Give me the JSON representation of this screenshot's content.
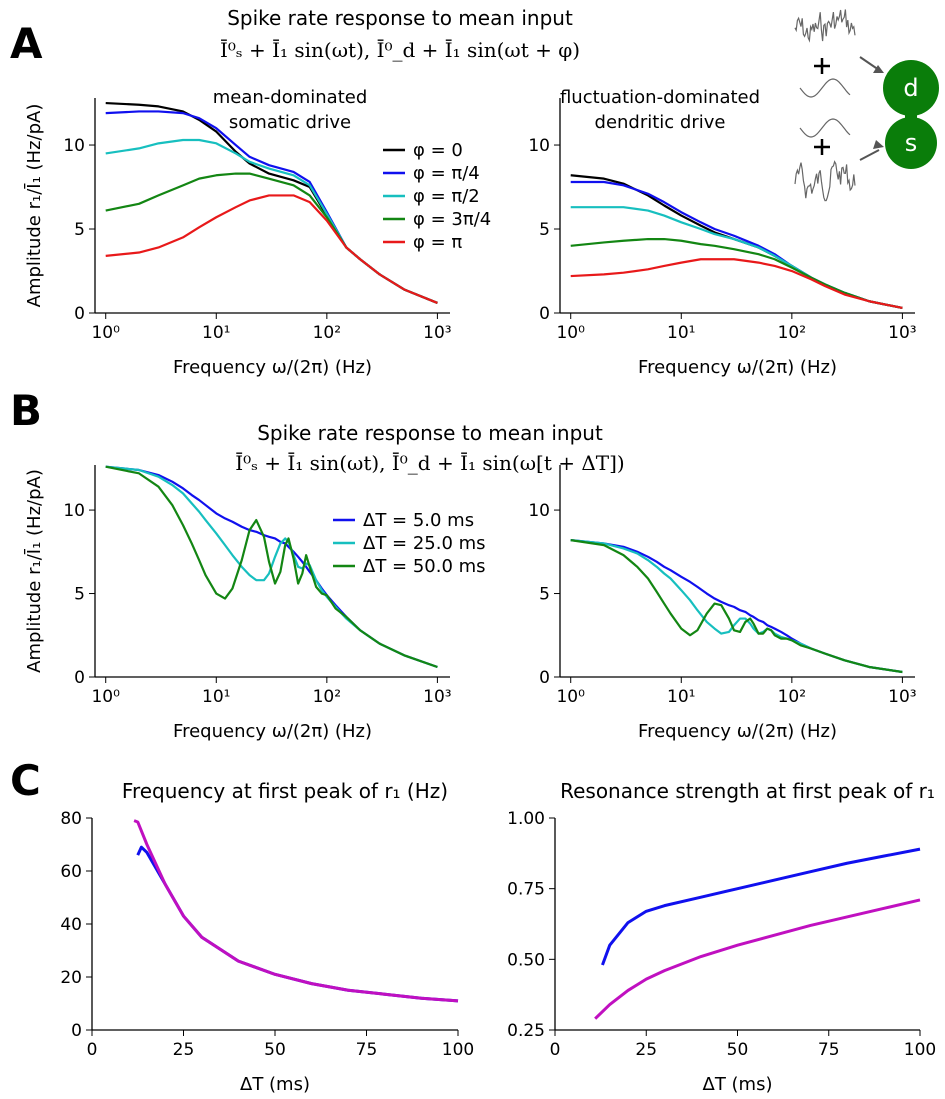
{
  "sections": [
    {
      "label": "A",
      "title": "Spike rate response to mean input",
      "subtitle": "Ī⁰ₛ + Ī₁ sin(ωt),  Ī⁰_d + Ī₁ sin(ωt + φ)"
    },
    {
      "label": "B",
      "title": "Spike rate response to mean input",
      "subtitle": "Ī⁰ₛ + Ī₁ sin(ωt),  Ī⁰_d + Ī₁ sin(ω[t + ΔT])"
    },
    {
      "label": "C"
    }
  ],
  "diagram": {
    "labels": [
      "d",
      "s"
    ]
  },
  "chart_data": [
    {
      "type": "line",
      "xscale": "log",
      "annotation": [
        "mean-dominated",
        "somatic drive"
      ],
      "xlabel": "Frequency ω/(2π) (Hz)",
      "ylabel": "Amplitude r₁/Ī₁ (Hz/pA)",
      "legend": "center right",
      "xlim": [
        0.8,
        1300
      ],
      "ylim": [
        0,
        12.8
      ],
      "xticks": [
        {
          "value": 1,
          "label": "10⁰"
        },
        {
          "value": 10,
          "label": "10¹"
        },
        {
          "value": 100,
          "label": "10²"
        },
        {
          "value": 1000,
          "label": "10³"
        }
      ],
      "yticks": [
        0,
        5,
        10
      ],
      "x": [
        1,
        2,
        3,
        5,
        7,
        10,
        15,
        20,
        30,
        50,
        70,
        100,
        150,
        200,
        300,
        500,
        1000
      ],
      "series": [
        {
          "name": "φ = 0",
          "color": "#000000",
          "values": [
            12.5,
            12.4,
            12.3,
            12.0,
            11.5,
            10.8,
            9.6,
            8.9,
            8.3,
            7.9,
            7.5,
            5.8,
            3.9,
            3.2,
            2.3,
            1.4,
            0.6
          ]
        },
        {
          "name": "φ = π/4",
          "color": "#1010ee",
          "values": [
            11.9,
            12.0,
            12.0,
            11.9,
            11.6,
            11.0,
            10.0,
            9.3,
            8.8,
            8.4,
            7.8,
            6.0,
            3.9,
            3.2,
            2.3,
            1.4,
            0.6
          ]
        },
        {
          "name": "φ = π/2",
          "color": "#17bfbf",
          "values": [
            9.5,
            9.8,
            10.1,
            10.3,
            10.3,
            10.1,
            9.5,
            9.0,
            8.6,
            8.2,
            7.6,
            5.9,
            3.9,
            3.2,
            2.3,
            1.4,
            0.6
          ]
        },
        {
          "name": "φ = 3π/4",
          "color": "#138613",
          "values": [
            6.1,
            6.5,
            7.0,
            7.6,
            8.0,
            8.2,
            8.3,
            8.3,
            8.0,
            7.6,
            7.0,
            5.7,
            3.9,
            3.2,
            2.3,
            1.4,
            0.6
          ]
        },
        {
          "name": "φ = π",
          "color": "#e8191a",
          "values": [
            3.4,
            3.6,
            3.9,
            4.5,
            5.1,
            5.7,
            6.3,
            6.7,
            7.0,
            7.0,
            6.6,
            5.5,
            3.9,
            3.2,
            2.3,
            1.4,
            0.6
          ]
        }
      ]
    },
    {
      "type": "line",
      "xscale": "log",
      "annotation": [
        "fluctuation-dominated",
        "dendritic drive"
      ],
      "xlabel": "Frequency ω/(2π) (Hz)",
      "xlim": [
        0.8,
        1300
      ],
      "ylim": [
        0,
        12.8
      ],
      "xticks": [
        {
          "value": 1,
          "label": "10⁰"
        },
        {
          "value": 10,
          "label": "10¹"
        },
        {
          "value": 100,
          "label": "10²"
        },
        {
          "value": 1000,
          "label": "10³"
        }
      ],
      "yticks": [
        0,
        5,
        10
      ],
      "x": [
        1,
        2,
        3,
        5,
        7,
        10,
        15,
        20,
        30,
        50,
        70,
        100,
        150,
        200,
        300,
        500,
        1000
      ],
      "series": [
        {
          "color": "#000000",
          "values": [
            8.2,
            8.0,
            7.7,
            7.0,
            6.4,
            5.8,
            5.2,
            4.8,
            4.4,
            3.9,
            3.4,
            2.8,
            2.1,
            1.7,
            1.2,
            0.7,
            0.3
          ]
        },
        {
          "color": "#1010ee",
          "values": [
            7.8,
            7.8,
            7.6,
            7.1,
            6.6,
            6.0,
            5.4,
            5.0,
            4.6,
            4.0,
            3.5,
            2.8,
            2.1,
            1.7,
            1.2,
            0.7,
            0.3
          ]
        },
        {
          "color": "#17bfbf",
          "values": [
            6.3,
            6.3,
            6.3,
            6.1,
            5.8,
            5.4,
            5.0,
            4.7,
            4.4,
            3.9,
            3.4,
            2.8,
            2.1,
            1.7,
            1.2,
            0.7,
            0.3
          ]
        },
        {
          "color": "#138613",
          "values": [
            4.0,
            4.2,
            4.3,
            4.4,
            4.4,
            4.3,
            4.1,
            4.0,
            3.8,
            3.5,
            3.2,
            2.7,
            2.1,
            1.7,
            1.2,
            0.7,
            0.3
          ]
        },
        {
          "color": "#e8191a",
          "values": [
            2.2,
            2.3,
            2.4,
            2.6,
            2.8,
            3.0,
            3.2,
            3.2,
            3.2,
            3.0,
            2.8,
            2.5,
            2.0,
            1.6,
            1.1,
            0.7,
            0.3
          ]
        }
      ]
    },
    {
      "type": "line",
      "xscale": "log",
      "xlabel": "Frequency ω/(2π) (Hz)",
      "ylabel": "Amplitude r₁/Ī₁ (Hz/pA)",
      "legend": "center right",
      "xlim": [
        0.8,
        1300
      ],
      "ylim": [
        0,
        12.7
      ],
      "xticks": [
        {
          "value": 1,
          "label": "10⁰"
        },
        {
          "value": 10,
          "label": "10¹"
        },
        {
          "value": 100,
          "label": "10²"
        },
        {
          "value": 1000,
          "label": "10³"
        }
      ],
      "yticks": [
        0,
        5,
        10
      ],
      "x": [
        1,
        2,
        3,
        4,
        5,
        6,
        7,
        8,
        10,
        12,
        14,
        17,
        20,
        23,
        27,
        30,
        34,
        38,
        42,
        45,
        50,
        55,
        60,
        65,
        70,
        80,
        90,
        100,
        120,
        150,
        200,
        300,
        500,
        1000
      ],
      "series": [
        {
          "name": "ΔT = 5.0 ms",
          "color": "#1010ee",
          "values": [
            12.6,
            12.4,
            12.1,
            11.7,
            11.3,
            10.9,
            10.6,
            10.3,
            9.8,
            9.5,
            9.3,
            9.0,
            8.8,
            8.7,
            8.5,
            8.4,
            8.3,
            8.1,
            8.0,
            7.8,
            7.5,
            7.2,
            6.9,
            6.6,
            6.3,
            5.8,
            5.3,
            4.9,
            4.3,
            3.6,
            2.8,
            2.0,
            1.3,
            0.6
          ]
        },
        {
          "name": "ΔT = 25.0 ms",
          "color": "#17bfbf",
          "values": [
            12.6,
            12.4,
            12.0,
            11.5,
            11.0,
            10.4,
            9.9,
            9.4,
            8.6,
            7.9,
            7.3,
            6.6,
            6.1,
            5.8,
            5.8,
            6.2,
            7.2,
            8.0,
            8.3,
            8.1,
            7.3,
            6.6,
            6.5,
            6.8,
            6.7,
            5.8,
            5.2,
            4.8,
            4.2,
            3.5,
            2.8,
            2.0,
            1.3,
            0.6
          ]
        },
        {
          "name": "ΔT = 50.0 ms",
          "color": "#138613",
          "values": [
            12.6,
            12.2,
            11.4,
            10.3,
            9.1,
            8.0,
            7.0,
            6.1,
            5.0,
            4.7,
            5.3,
            7.0,
            8.8,
            9.4,
            8.4,
            6.9,
            5.6,
            6.3,
            7.9,
            8.3,
            7.1,
            5.6,
            6.2,
            7.3,
            6.6,
            5.4,
            5.0,
            4.9,
            4.1,
            3.6,
            2.8,
            2.0,
            1.3,
            0.6
          ]
        }
      ]
    },
    {
      "type": "line",
      "xscale": "log",
      "xlabel": "Frequency ω/(2π) (Hz)",
      "xlim": [
        0.8,
        1300
      ],
      "ylim": [
        0,
        12.7
      ],
      "xticks": [
        {
          "value": 1,
          "label": "10⁰"
        },
        {
          "value": 10,
          "label": "10¹"
        },
        {
          "value": 100,
          "label": "10²"
        },
        {
          "value": 1000,
          "label": "10³"
        }
      ],
      "yticks": [
        0,
        5,
        10
      ],
      "x": [
        1,
        2,
        3,
        4,
        5,
        6,
        7,
        8,
        10,
        12,
        14,
        17,
        20,
        23,
        27,
        30,
        34,
        38,
        42,
        45,
        50,
        55,
        60,
        65,
        70,
        80,
        90,
        100,
        120,
        150,
        200,
        300,
        500,
        1000
      ],
      "series": [
        {
          "color": "#1010ee",
          "values": [
            8.2,
            8.0,
            7.8,
            7.5,
            7.2,
            6.9,
            6.6,
            6.4,
            6.0,
            5.7,
            5.4,
            5.0,
            4.7,
            4.5,
            4.3,
            4.2,
            4.0,
            3.9,
            3.7,
            3.6,
            3.4,
            3.3,
            3.1,
            3.0,
            2.9,
            2.7,
            2.5,
            2.3,
            2.0,
            1.7,
            1.4,
            1.0,
            0.6,
            0.3
          ]
        },
        {
          "color": "#17bfbf",
          "values": [
            8.2,
            8.0,
            7.7,
            7.4,
            7.0,
            6.6,
            6.2,
            5.9,
            5.2,
            4.6,
            4.0,
            3.3,
            2.9,
            2.6,
            2.7,
            3.1,
            3.5,
            3.5,
            3.2,
            2.9,
            2.6,
            2.7,
            2.9,
            2.8,
            2.6,
            2.4,
            2.3,
            2.2,
            2.0,
            1.7,
            1.4,
            1.0,
            0.6,
            0.3
          ]
        },
        {
          "color": "#138613",
          "values": [
            8.2,
            7.9,
            7.3,
            6.6,
            5.9,
            5.1,
            4.4,
            3.8,
            2.9,
            2.5,
            2.8,
            3.8,
            4.4,
            4.3,
            3.5,
            2.8,
            2.7,
            3.3,
            3.5,
            3.2,
            2.6,
            2.6,
            2.9,
            2.8,
            2.5,
            2.3,
            2.3,
            2.2,
            1.9,
            1.7,
            1.4,
            1.0,
            0.6,
            0.3
          ]
        }
      ]
    },
    {
      "type": "line",
      "title": "Frequency at first peak of r₁ (Hz)",
      "xlabel": "ΔT (ms)",
      "xlim": [
        0,
        100
      ],
      "ylim": [
        0,
        80
      ],
      "xticks": [
        0,
        25,
        50,
        75,
        100
      ],
      "yticks": [
        0,
        20,
        40,
        60,
        80
      ],
      "series": [
        {
          "color": "#1010ee",
          "x": [
            12.5,
            13.5,
            15,
            20,
            25,
            30,
            40,
            50,
            60,
            70,
            80,
            90,
            100
          ],
          "values": [
            66,
            69,
            67,
            55,
            43,
            35,
            26,
            21,
            17.5,
            15,
            13.5,
            12,
            11
          ]
        },
        {
          "color": "#c010c0",
          "x": [
            11.5,
            12.5,
            15,
            20,
            25,
            30,
            40,
            50,
            60,
            70,
            80,
            90,
            100
          ],
          "values": [
            79,
            78.5,
            70,
            55,
            43,
            35,
            26,
            21,
            17.5,
            15,
            13.5,
            12,
            11
          ]
        }
      ]
    },
    {
      "type": "line",
      "title": "Resonance strength at first peak of r₁",
      "xlabel": "ΔT (ms)",
      "xlim": [
        0,
        100
      ],
      "ylim": [
        0.25,
        1.0
      ],
      "xticks": [
        0,
        25,
        50,
        75,
        100
      ],
      "yticks": [
        0.25,
        {
          "value": 0.5,
          "label": "0.50"
        },
        0.75,
        {
          "value": 1.0,
          "label": "1.00"
        }
      ],
      "series": [
        {
          "color": "#1010ee",
          "x": [
            13,
            15,
            20,
            25,
            30,
            40,
            50,
            60,
            70,
            80,
            90,
            100
          ],
          "values": [
            0.48,
            0.55,
            0.63,
            0.67,
            0.69,
            0.72,
            0.75,
            0.78,
            0.81,
            0.84,
            0.865,
            0.89
          ]
        },
        {
          "color": "#c010c0",
          "x": [
            11,
            15,
            20,
            25,
            30,
            40,
            50,
            60,
            70,
            80,
            90,
            100
          ],
          "values": [
            0.29,
            0.34,
            0.39,
            0.43,
            0.46,
            0.51,
            0.55,
            0.585,
            0.62,
            0.65,
            0.68,
            0.71
          ]
        }
      ]
    }
  ]
}
